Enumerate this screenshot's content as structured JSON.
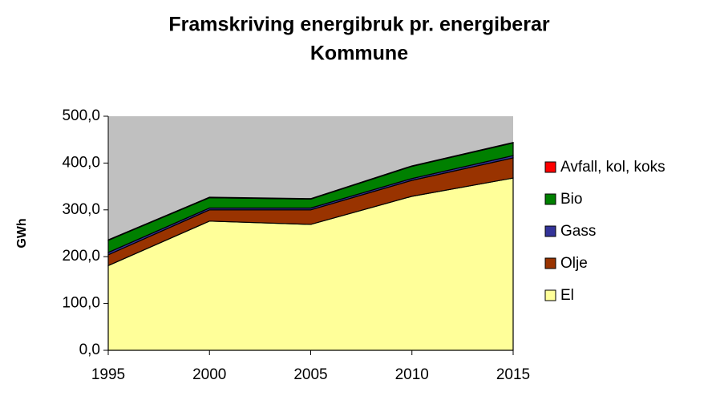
{
  "chart_data": {
    "type": "stacked_area",
    "title": [
      "Framskriving energibruk pr. energiberar",
      "Kommune"
    ],
    "y_label": "GWh",
    "x": [
      1995,
      2000,
      2005,
      2010,
      2015
    ],
    "xlim": [
      1995,
      2015
    ],
    "xticks": [
      1995,
      2000,
      2005,
      2010,
      2015
    ],
    "ylim": [
      0,
      500
    ],
    "yticks": [
      {
        "value": 0,
        "label": "0,0"
      },
      {
        "value": 100,
        "label": "100,0"
      },
      {
        "value": 200,
        "label": "200,0"
      },
      {
        "value": 300,
        "label": "300,0"
      },
      {
        "value": 400,
        "label": "400,0"
      },
      {
        "value": 500,
        "label": "500,0"
      }
    ],
    "background": "#c0c0c0",
    "legend": "right",
    "series": [
      {
        "name": "El",
        "color": "#ffff99",
        "values": [
          181,
          276,
          269,
          329,
          368
        ]
      },
      {
        "name": "Olje",
        "color": "#993300",
        "values": [
          23,
          24,
          31,
          34,
          43
        ]
      },
      {
        "name": "Gass",
        "color": "#333399",
        "values": [
          5,
          4,
          4,
          4,
          5
        ]
      },
      {
        "name": "Bio",
        "color": "#008000",
        "values": [
          26,
          22,
          19,
          26,
          27
        ]
      },
      {
        "name": "Avfall, kol, koks",
        "color": "#ff0000",
        "values": [
          1,
          1,
          1,
          1,
          1
        ]
      }
    ]
  }
}
